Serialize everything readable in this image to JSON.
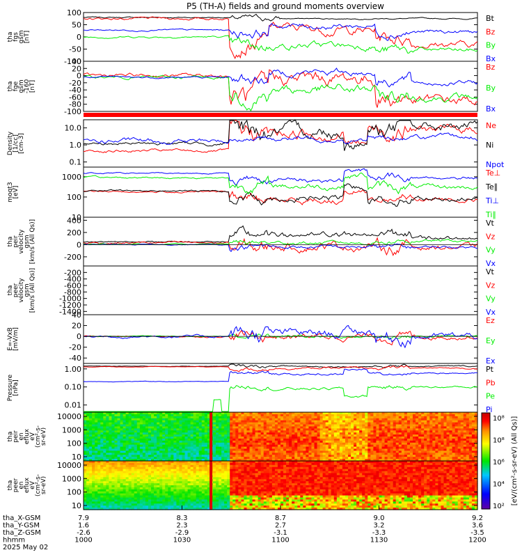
{
  "title": "P5 (TH-A) fields and ground moments overview",
  "colors": {
    "black": "#000000",
    "red": "#ff0000",
    "green": "#00ee00",
    "blue": "#0000ff"
  },
  "chart_data": [
    {
      "id": "fgs",
      "type": "line",
      "ylabel": [
        "tha",
        "fgs",
        "gsm",
        "[nT]"
      ],
      "ylim": [
        -100,
        100
      ],
      "yticks": [
        100,
        50,
        0,
        -50,
        -100
      ],
      "series": [
        {
          "name": "Bt",
          "color": "black"
        },
        {
          "name": "Bz",
          "color": "red"
        },
        {
          "name": "By",
          "color": "green"
        },
        {
          "name": "Bx",
          "color": "blue"
        }
      ]
    },
    {
      "id": "fge",
      "type": "line",
      "ylabel": [
        "tha",
        "fge",
        "gsm",
        "-160",
        "[nT]"
      ],
      "ylim": [
        -100,
        40
      ],
      "yticks": [
        40,
        20,
        0,
        -20,
        -40,
        -60,
        -80,
        -100
      ],
      "series": [
        {
          "name": "Bz",
          "color": "red"
        },
        {
          "name": "By",
          "color": "green"
        },
        {
          "name": "Bx",
          "color": "blue"
        }
      ]
    },
    {
      "id": "density",
      "type": "line",
      "ylabel": [
        "Density",
        "[1/cc]",
        "[cm-3]"
      ],
      "scale": "log",
      "ylim": [
        0.05,
        30
      ],
      "yticks": [
        "10.0",
        "1.0",
        "0.1"
      ],
      "series": [
        {
          "name": "Ne",
          "color": "red"
        },
        {
          "name": "Ni",
          "color": "black"
        },
        {
          "name": "Npot",
          "color": "blue"
        }
      ]
    },
    {
      "id": "temp",
      "type": "line",
      "ylabel": [
        "moqt3",
        "[eV]"
      ],
      "scale": "log",
      "ylim": [
        10,
        3000
      ],
      "yticks": [
        "1000",
        "100",
        "10"
      ],
      "series": [
        {
          "name": "Te⊥",
          "color": "red"
        },
        {
          "name": "Te∥",
          "color": "black"
        },
        {
          "name": "Ti⊥",
          "color": "blue"
        },
        {
          "name": "Ti∥",
          "color": "green"
        }
      ]
    },
    {
      "id": "peir_vel",
      "type": "line",
      "ylabel": [
        "tha",
        "peir",
        "velocity",
        "gsm",
        "[km/s (All Qs)]"
      ],
      "ylim": [
        -350,
        450
      ],
      "yticks": [
        400,
        200,
        0,
        -200
      ],
      "series": [
        {
          "name": "Vt",
          "color": "black"
        },
        {
          "name": "Vz",
          "color": "red"
        },
        {
          "name": "Vy",
          "color": "green"
        },
        {
          "name": "Vx",
          "color": "blue"
        }
      ]
    },
    {
      "id": "peer_vel",
      "type": "line",
      "ylabel": [
        "tha",
        "peer",
        "velocity",
        "gsm",
        "[km/s (All Qs)]"
      ],
      "ylim": [
        -1500,
        0
      ],
      "yticks": [
        -200,
        -400,
        -600,
        -800,
        -1000,
        -1200,
        -1400
      ],
      "series": [
        {
          "name": "Vt",
          "color": "black"
        },
        {
          "name": "Vz",
          "color": "red"
        },
        {
          "name": "Vy",
          "color": "green"
        },
        {
          "name": "Vx",
          "color": "blue"
        }
      ]
    },
    {
      "id": "efield",
      "type": "line",
      "ylabel": [
        "E=-VxB",
        "[mV/m]"
      ],
      "ylim": [
        -50,
        40
      ],
      "yticks": [
        40,
        20,
        0,
        -20,
        -40
      ],
      "series": [
        {
          "name": "Ez",
          "color": "red"
        },
        {
          "name": "Ey",
          "color": "green"
        },
        {
          "name": "Ex",
          "color": "blue"
        }
      ]
    },
    {
      "id": "pressure",
      "type": "line",
      "ylabel": [
        "Pressure",
        "[nPa]"
      ],
      "scale": "log",
      "ylim": [
        0.004,
        2
      ],
      "yticks": [
        "1.00",
        "0.10",
        "0.01"
      ],
      "series": [
        {
          "name": "Pt",
          "color": "black"
        },
        {
          "name": "Pb",
          "color": "red"
        },
        {
          "name": "Pe",
          "color": "green"
        },
        {
          "name": "Pi",
          "color": "blue"
        }
      ]
    },
    {
      "id": "peir_spec",
      "type": "heatmap",
      "ylabel": [
        "tha",
        "peir",
        "en",
        "eflux",
        "eV",
        "(cm²-s-",
        "sr-eV)"
      ],
      "yticks": [
        "10000",
        "1000",
        "100",
        "10"
      ]
    },
    {
      "id": "peer_spec",
      "type": "heatmap",
      "ylabel": [
        "tha",
        "peer",
        "en",
        "eflux",
        "eV",
        "(cm²-s-",
        "sr-eV)"
      ],
      "yticks": [
        "10000",
        "1000",
        "100",
        "10"
      ]
    }
  ],
  "colorbar": {
    "label": "[eV/(cm²-s-sr-eV) (All Qs)]",
    "ticks": [
      "10⁸",
      "10⁸",
      "10⁶",
      "10⁴",
      "10²"
    ]
  },
  "xaxis": {
    "rows": [
      {
        "label": "tha_X-GSM",
        "values": [
          "7.9",
          "8.3",
          "8.7",
          "9.0",
          "9.2"
        ]
      },
      {
        "label": "tha_Y-GSM",
        "values": [
          "1.6",
          "2.3",
          "2.7",
          "3.2",
          "3.6"
        ]
      },
      {
        "label": "tha_Z-GSM",
        "values": [
          "-2.6",
          "-2.9",
          "-3.1",
          "-3.3",
          "-3.5"
        ]
      },
      {
        "label": "hhmm",
        "values": [
          "1000",
          "1030",
          "1100",
          "1130",
          "1200"
        ]
      }
    ],
    "date": "2025 May 02"
  }
}
